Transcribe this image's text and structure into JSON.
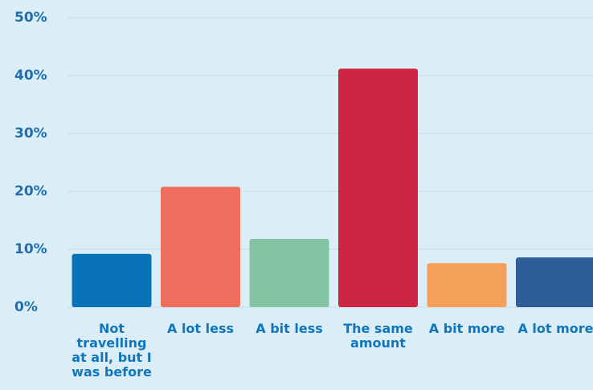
{
  "chart_data": {
    "type": "bar",
    "categories": [
      "Not travelling at all, but I was before",
      "A lot less",
      "A bit less",
      "The same amount",
      "A bit more",
      "A lot more"
    ],
    "values": [
      9.2,
      20.8,
      11.8,
      41.2,
      7.6,
      8.6
    ],
    "colors": [
      "#0a72b9",
      "#ee6e5e",
      "#82c4a3",
      "#cf2545",
      "#f5a05a",
      "#2f5d98"
    ],
    "ylim": [
      0,
      50
    ],
    "yticks": [
      {
        "value": 0,
        "label": "0%"
      },
      {
        "value": 10,
        "label": "10%"
      },
      {
        "value": 20,
        "label": "20%"
      },
      {
        "value": 30,
        "label": "30%"
      },
      {
        "value": 40,
        "label": "40%"
      },
      {
        "value": 50,
        "label": "50%"
      }
    ],
    "grid": true
  }
}
